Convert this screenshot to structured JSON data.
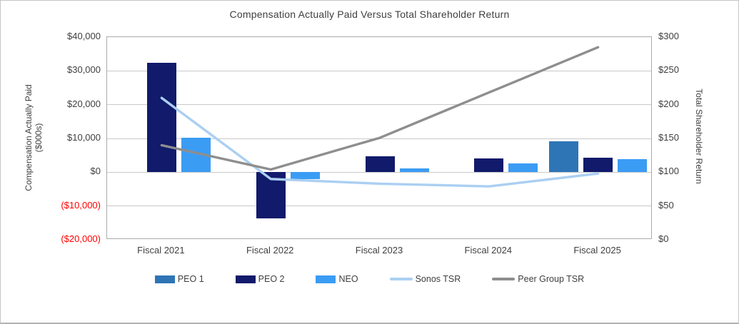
{
  "window": {
    "background": "#ffffff",
    "border_color": "#c5c5c5"
  },
  "chart_data": {
    "type": "bar",
    "subtype": "combo-bar-line-dual-axis",
    "title": "Compensation Actually Paid Versus Total Shareholder Return",
    "categories": [
      "Fiscal 2021",
      "Fiscal 2022",
      "Fiscal 2023",
      "Fiscal 2024",
      "Fiscal 2025"
    ],
    "grid": true,
    "legend_position": "bottom",
    "left_axis": {
      "title_line1": "Compensation Actually Paid",
      "title_line2": "($000s)",
      "min": -20000,
      "max": 40000,
      "ticks": [
        {
          "label": "$40,000",
          "value": 40000,
          "negative": false
        },
        {
          "label": "$30,000",
          "value": 30000,
          "negative": false
        },
        {
          "label": "$20,000",
          "value": 20000,
          "negative": false
        },
        {
          "label": "$10,000",
          "value": 10000,
          "negative": false
        },
        {
          "label": "$0",
          "value": 0,
          "negative": false
        },
        {
          "label": "($10,000)",
          "value": -10000,
          "negative": true
        },
        {
          "label": "($20,000)",
          "value": -20000,
          "negative": true
        }
      ]
    },
    "right_axis": {
      "title": "Total Shareholder Return",
      "min": 0,
      "max": 300,
      "ticks": [
        {
          "label": "$300",
          "value": 300
        },
        {
          "label": "$250",
          "value": 250
        },
        {
          "label": "$200",
          "value": 200
        },
        {
          "label": "$150",
          "value": 150
        },
        {
          "label": "$100",
          "value": 100
        },
        {
          "label": "$50",
          "value": 50
        },
        {
          "label": "$0",
          "value": 0
        }
      ]
    },
    "bar_series": [
      {
        "name": "PEO 1",
        "color": "#2e75b6",
        "offset": -48,
        "values": [
          null,
          null,
          null,
          null,
          9200
        ]
      },
      {
        "name": "PEO 2",
        "color": "#111a6b",
        "offset": 0,
        "values": [
          32300,
          -13600,
          4700,
          4000,
          4400
        ]
      },
      {
        "name": "NEO",
        "color": "#3b9cf4",
        "offset": 48,
        "values": [
          10200,
          -2000,
          1100,
          2700,
          3900
        ]
      }
    ],
    "line_series": [
      {
        "name": "Sonos TSR",
        "color": "#abcff2",
        "values": [
          210,
          90,
          83,
          79,
          98
        ]
      },
      {
        "name": "Peer Group TSR",
        "color": "#8e8e8e",
        "values": [
          140,
          104,
          151,
          218,
          285
        ]
      }
    ],
    "negative_tick_color": "#ff0000",
    "gridline_color": "#c9c9c9"
  }
}
